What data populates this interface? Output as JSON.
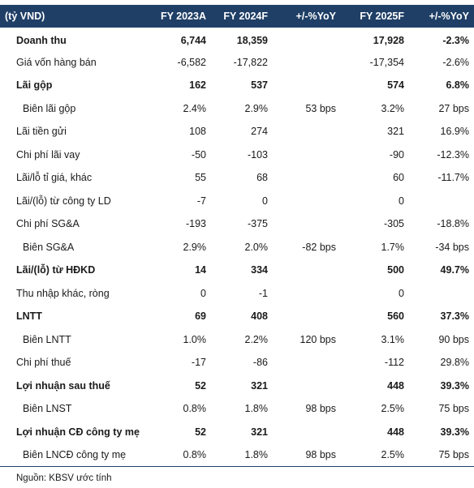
{
  "header": {
    "unit": "(tỷ VND)",
    "columns": [
      "FY 2023A",
      "FY 2024F",
      "+/-%YoY",
      "FY 2025F",
      "+/-%YoY"
    ]
  },
  "rows": [
    {
      "label": "Doanh thu",
      "style": "bold",
      "values": [
        "6,744",
        "18,359",
        "",
        "17,928",
        "-2.3%"
      ]
    },
    {
      "label": "Giá vốn hàng bán",
      "style": "normal",
      "values": [
        "-6,582",
        "-17,822",
        "",
        "-17,354",
        "-2.6%"
      ]
    },
    {
      "label": "Lãi gộp",
      "style": "bold",
      "values": [
        "162",
        "537",
        "",
        "574",
        "6.8%"
      ]
    },
    {
      "label": "Biên lãi gộp",
      "style": "indent",
      "values": [
        "2.4%",
        "2.9%",
        "53 bps",
        "3.2%",
        "27 bps"
      ]
    },
    {
      "label": "Lãi tiền gửi",
      "style": "normal",
      "values": [
        "108",
        "274",
        "",
        "321",
        "16.9%"
      ]
    },
    {
      "label": "Chi phí lãi vay",
      "style": "normal",
      "values": [
        "-50",
        "-103",
        "",
        "-90",
        "-12.3%"
      ]
    },
    {
      "label": "Lãi/lỗ tỉ giá, khác",
      "style": "normal",
      "values": [
        "55",
        "68",
        "",
        "60",
        "-11.7%"
      ]
    },
    {
      "label": "Lãi/(lỗ) từ công ty LD",
      "style": "normal",
      "values": [
        "-7",
        "0",
        "",
        "0",
        ""
      ]
    },
    {
      "label": "Chi phí SG&A",
      "style": "normal",
      "values": [
        "-193",
        "-375",
        "",
        "-305",
        "-18.8%"
      ]
    },
    {
      "label": "Biên SG&A",
      "style": "indent",
      "values": [
        "2.9%",
        "2.0%",
        "-82 bps",
        "1.7%",
        "-34 bps"
      ]
    },
    {
      "label": "Lãi/(lỗ) từ HĐKD",
      "style": "bold",
      "values": [
        "14",
        "334",
        "",
        "500",
        "49.7%"
      ]
    },
    {
      "label": "Thu nhập khác, ròng",
      "style": "normal",
      "values": [
        "0",
        "-1",
        "",
        "0",
        ""
      ]
    },
    {
      "label": "LNTT",
      "style": "bold",
      "values": [
        "69",
        "408",
        "",
        "560",
        "37.3%"
      ]
    },
    {
      "label": "Biên LNTT",
      "style": "indent",
      "values": [
        "1.0%",
        "2.2%",
        "120 bps",
        "3.1%",
        "90 bps"
      ]
    },
    {
      "label": "Chi phí thuế",
      "style": "normal",
      "values": [
        "-17",
        "-86",
        "",
        "-112",
        "29.8%"
      ]
    },
    {
      "label": "Lợi nhuận sau thuế",
      "style": "bold",
      "values": [
        "52",
        "321",
        "",
        "448",
        "39.3%"
      ]
    },
    {
      "label": "Biên LNST",
      "style": "indent",
      "values": [
        "0.8%",
        "1.8%",
        "98 bps",
        "2.5%",
        "75 bps"
      ]
    },
    {
      "label": "Lợi nhuận CĐ công ty mẹ",
      "style": "bold",
      "values": [
        "52",
        "321",
        "",
        "448",
        "39.3%"
      ]
    },
    {
      "label": "Biên LNCĐ công ty mẹ",
      "style": "indent",
      "values": [
        "0.8%",
        "1.8%",
        "98 bps",
        "2.5%",
        "75 bps"
      ]
    }
  ],
  "source": "Nguồn: KBSV ước tính",
  "colors": {
    "header_bg": "#1f3f66",
    "header_text": "#ffffff",
    "text": "#1a1a1a"
  }
}
